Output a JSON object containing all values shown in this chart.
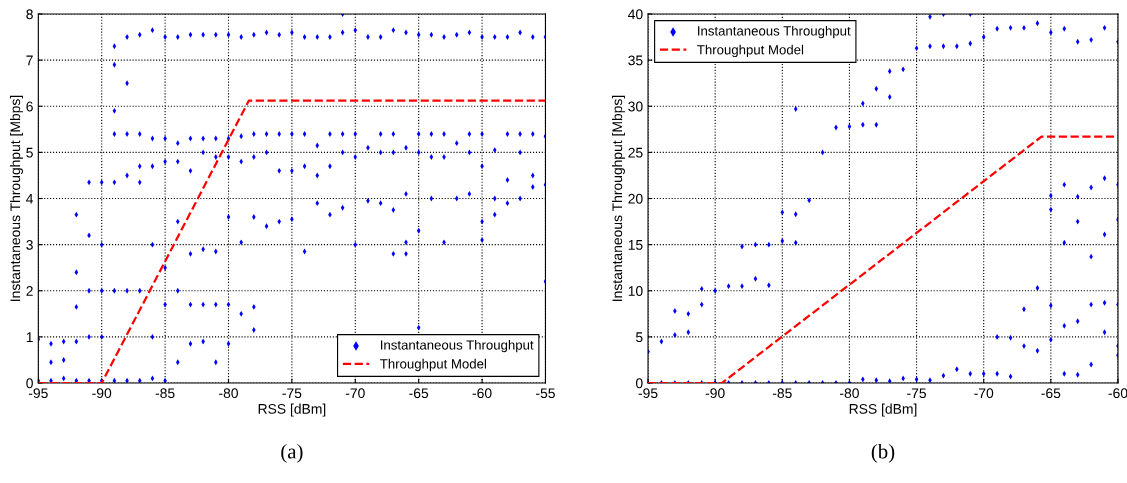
{
  "chart_data": [
    {
      "type": "scatter",
      "xlabel": "RSS [dBm]",
      "ylabel": "Instantaneous Throughput [Mbps]",
      "annotations": [
        "(a)"
      ],
      "xlim": [
        -95,
        -55
      ],
      "ylim": [
        0,
        8
      ],
      "xticks": [
        -95,
        -90,
        -85,
        -80,
        -75,
        -70,
        -65,
        -60,
        -55
      ],
      "yticks": [
        0,
        1,
        2,
        3,
        4,
        5,
        6,
        7,
        8
      ],
      "grid": true,
      "legend": "bottom right",
      "series": [
        {
          "name": "Instantaneous Throughput",
          "color": "#0000ff",
          "marker": "diamond",
          "x": [
            -95,
            -95,
            -94,
            -94,
            -94,
            -93,
            -93,
            -93,
            -92,
            -92,
            -92,
            -92,
            -92,
            -91,
            -91,
            -91,
            -91,
            -91,
            -90,
            -90,
            -90,
            -90,
            -90,
            -89,
            -89,
            -89,
            -89,
            -89,
            -89,
            -89,
            -88,
            -88,
            -88,
            -88,
            -88,
            -88,
            -87,
            -87,
            -87,
            -87,
            -87,
            -87,
            -86,
            -86,
            -86,
            -86,
            -86,
            -86,
            -85,
            -85,
            -85,
            -85,
            -85,
            -85,
            -84,
            -84,
            -84,
            -84,
            -84,
            -84,
            -83,
            -83,
            -83,
            -83,
            -83,
            -83,
            -82,
            -82,
            -82,
            -82,
            -82,
            -82,
            -81,
            -81,
            -81,
            -81,
            -81,
            -81,
            -80,
            -80,
            -80,
            -80,
            -80,
            -80,
            -79,
            -79,
            -79,
            -79,
            -79,
            -78,
            -78,
            -78,
            -78,
            -78,
            -78,
            -77,
            -77,
            -77,
            -77,
            -76,
            -76,
            -76,
            -76,
            -75,
            -75,
            -75,
            -75,
            -74,
            -74,
            -74,
            -74,
            -73,
            -73,
            -73,
            -73,
            -72,
            -72,
            -72,
            -72,
            -71,
            -71,
            -71,
            -71,
            -71,
            -70,
            -70,
            -70,
            -70,
            -69,
            -69,
            -69,
            -68,
            -68,
            -68,
            -68,
            -67,
            -67,
            -67,
            -67,
            -67,
            -66,
            -66,
            -66,
            -66,
            -66,
            -65,
            -65,
            -65,
            -65,
            -65,
            -64,
            -64,
            -64,
            -64,
            -63,
            -63,
            -63,
            -63,
            -62,
            -62,
            -62,
            -61,
            -61,
            -61,
            -61,
            -60,
            -60,
            -60,
            -60,
            -60,
            -59,
            -59,
            -59,
            -59,
            -58,
            -58,
            -58,
            -58,
            -57,
            -57,
            -57,
            -57,
            -56,
            -56,
            -56,
            -56,
            -55,
            -55,
            -55,
            -55
          ],
          "values": [
            0.95,
            0.05,
            0.85,
            0.45,
            0.05,
            0.9,
            0.5,
            0.1,
            3.65,
            2.4,
            1.65,
            0.9,
            0.05,
            4.35,
            3.2,
            2.0,
            1.0,
            0.05,
            4.35,
            3.0,
            2.0,
            1.0,
            0.05,
            7.3,
            6.9,
            5.9,
            5.4,
            4.35,
            2.0,
            0.05,
            7.5,
            6.5,
            5.4,
            4.5,
            2.0,
            0.05,
            7.55,
            5.4,
            4.7,
            4.35,
            2.0,
            0.05,
            7.65,
            5.3,
            4.7,
            3.0,
            1.0,
            0.1,
            7.5,
            5.3,
            4.8,
            2.5,
            1.7,
            0.05,
            7.5,
            5.2,
            4.8,
            3.5,
            2.0,
            0.45,
            7.55,
            5.3,
            4.6,
            2.8,
            1.7,
            0.85,
            7.55,
            5.3,
            5.0,
            2.9,
            1.7,
            0.9,
            7.55,
            5.3,
            4.9,
            2.85,
            1.7,
            0.45,
            7.55,
            5.3,
            4.9,
            3.6,
            1.7,
            0.85,
            7.5,
            5.35,
            4.8,
            3.05,
            1.5,
            7.55,
            5.4,
            4.9,
            3.6,
            1.65,
            1.15,
            7.6,
            5.4,
            5.0,
            3.4,
            7.55,
            5.4,
            4.6,
            3.5,
            7.6,
            5.4,
            4.6,
            3.55,
            7.5,
            5.4,
            4.7,
            2.85,
            7.5,
            5.15,
            4.5,
            3.9,
            7.5,
            5.4,
            4.7,
            3.65,
            8.0,
            7.6,
            5.4,
            5.0,
            3.8,
            7.65,
            5.4,
            4.9,
            3.0,
            7.5,
            5.1,
            3.95,
            7.5,
            5.4,
            5.0,
            3.9,
            7.65,
            5.4,
            5.0,
            3.75,
            2.8,
            7.6,
            5.1,
            4.1,
            3.05,
            2.8,
            7.55,
            5.4,
            5.0,
            3.3,
            1.2,
            7.55,
            5.4,
            4.9,
            4.0,
            7.5,
            5.4,
            4.9,
            3.05,
            7.55,
            5.2,
            4.0,
            7.6,
            5.4,
            5.0,
            4.1,
            7.5,
            5.4,
            4.7,
            3.5,
            3.1,
            7.5,
            5.05,
            4.0,
            3.65,
            7.5,
            5.4,
            4.4,
            3.9,
            7.6,
            5.4,
            5.0,
            4.0,
            7.5,
            5.4,
            4.5,
            4.25,
            7.5,
            5.35,
            4.3,
            2.2
          ]
        },
        {
          "name": "Throughput Model",
          "type": "line",
          "color": "#ff0000",
          "line_style": "dashed",
          "x": [
            -95,
            -90,
            -78.4,
            -55
          ],
          "values": [
            0,
            0,
            6.12,
            6.12
          ]
        }
      ]
    },
    {
      "type": "scatter",
      "xlabel": "RSS [dBm]",
      "ylabel": "Instantaneous Throughput [Mbps]",
      "annotations": [
        "(b)"
      ],
      "xlim": [
        -95,
        -60
      ],
      "ylim": [
        0,
        40
      ],
      "xticks": [
        -95,
        -90,
        -85,
        -80,
        -75,
        -70,
        -65,
        -60
      ],
      "yticks": [
        0,
        5,
        10,
        15,
        20,
        25,
        30,
        35,
        40
      ],
      "grid": true,
      "legend": "top left",
      "series": [
        {
          "name": "Instantaneous Throughput",
          "color": "#0000ff",
          "marker": "diamond",
          "x": [
            -95,
            -95,
            -94,
            -94,
            -93,
            -93,
            -93,
            -92,
            -92,
            -92,
            -91,
            -91,
            -91,
            -90,
            -90,
            -89,
            -89,
            -88,
            -88,
            -88,
            -87,
            -87,
            -87,
            -86,
            -86,
            -86,
            -85,
            -85,
            -85,
            -84,
            -84,
            -84,
            -84,
            -83,
            -83,
            -82,
            -82,
            -81,
            -81,
            -80,
            -80,
            -79,
            -79,
            -79,
            -78,
            -78,
            -78,
            -77,
            -77,
            -77,
            -76,
            -76,
            -75,
            -75,
            -74,
            -74,
            -74,
            -73,
            -73,
            -73,
            -72,
            -72,
            -71,
            -71,
            -71,
            -70,
            -70,
            -69,
            -69,
            -69,
            -68,
            -68,
            -68,
            -67,
            -67,
            -67,
            -66,
            -66,
            -66,
            -65,
            -65,
            -65,
            -65,
            -65,
            -64,
            -64,
            -64,
            -64,
            -64,
            -63,
            -63,
            -63,
            -63,
            -63,
            -62,
            -62,
            -62,
            -62,
            -62,
            -61,
            -61,
            -61,
            -61,
            -61,
            -60,
            -60,
            -60,
            -60,
            -60,
            -60
          ],
          "values": [
            3.4,
            0,
            4.5,
            0,
            7.8,
            5.2,
            0,
            7.5,
            5.5,
            0,
            10.2,
            8.5,
            0,
            10.0,
            0,
            10.5,
            0,
            14.8,
            10.5,
            0,
            15.0,
            11.3,
            0,
            15.0,
            10.6,
            0,
            18.5,
            15.4,
            0,
            29.7,
            18.3,
            15.2,
            0,
            19.8,
            0,
            25.0,
            0,
            27.7,
            0,
            27.8,
            0,
            30.3,
            28.0,
            0.4,
            31.9,
            28.0,
            0.3,
            33.8,
            31.0,
            0.2,
            34.0,
            0.5,
            36.3,
            0.4,
            39.7,
            36.5,
            0.3,
            40.0,
            36.5,
            0.8,
            36.5,
            1.5,
            40.0,
            36.8,
            1.0,
            37.5,
            1.0,
            38.4,
            5.0,
            1.0,
            38.5,
            4.9,
            0.7,
            38.5,
            8.0,
            4.0,
            39.0,
            10.3,
            3.5,
            38.0,
            20.3,
            18.8,
            8.4,
            4.7,
            38.4,
            21.5,
            15.2,
            6.2,
            1.0,
            37.0,
            20.2,
            17.5,
            6.7,
            0.9,
            37.2,
            21.2,
            13.7,
            8.5,
            2.0,
            38.5,
            22.2,
            16.1,
            8.7,
            5.5,
            37.0,
            21.5,
            17.7,
            8.5,
            4.0,
            3.0
          ]
        },
        {
          "name": "Throughput Model",
          "type": "line",
          "color": "#ff0000",
          "line_style": "dashed",
          "x": [
            -95,
            -89.5,
            -65.7,
            -60
          ],
          "values": [
            0,
            0,
            26.7,
            26.7
          ]
        }
      ]
    }
  ]
}
